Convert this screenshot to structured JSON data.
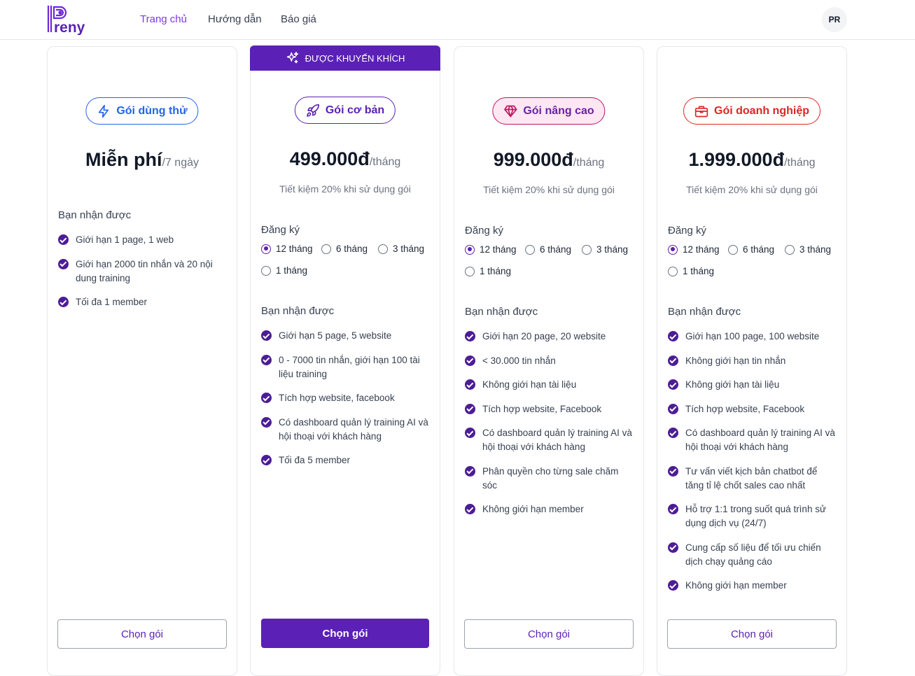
{
  "brand": {
    "name": "Preny",
    "accent": "#5b21b6"
  },
  "nav": {
    "home": "Trang chủ",
    "guide": "Hướng dẫn",
    "pricing": "Báo giá"
  },
  "user": {
    "initials": "PR"
  },
  "plans": [
    {
      "name": "Gói dùng thử",
      "icon": "lightning-icon",
      "price": "Miễn phí",
      "period": "/7 ngày",
      "receive_label": "Bạn nhận được",
      "features": [
        "Giới hạn 1 page, 1 web",
        "Giới hạn 2000 tin nhắn và 20 nội dung training",
        "Tối đa 1 member"
      ],
      "button": "Chọn gói"
    },
    {
      "name": "Gói cơ bản",
      "icon": "rocket-icon",
      "recommended_label": "ĐƯỢC KHUYẾN KHÍCH",
      "price": "499.000đ",
      "period": "/tháng",
      "saving": "Tiết kiệm 20% khi sử dụng gói",
      "register_label": "Đăng ký",
      "durations": [
        "12 tháng",
        "6 tháng",
        "3 tháng",
        "1 tháng"
      ],
      "selected": "12 tháng",
      "receive_label": "Bạn nhận được",
      "features": [
        "Giới hạn 5 page, 5 website",
        "0 - 7000 tin nhắn, giới hạn 100 tài liệu training",
        "Tích hợp website, facebook",
        "Có dashboard quản lý training AI và hội thoại với khách hàng",
        "Tối đa 5 member"
      ],
      "button": "Chọn gói"
    },
    {
      "name": "Gói nâng cao",
      "icon": "diamond-icon",
      "price": "999.000đ",
      "period": "/tháng",
      "saving": "Tiết kiệm 20% khi sử dụng gói",
      "register_label": "Đăng ký",
      "durations": [
        "12 tháng",
        "6 tháng",
        "3 tháng",
        "1 tháng"
      ],
      "selected": "12 tháng",
      "receive_label": "Bạn nhận được",
      "features": [
        "Giới hạn 20 page, 20 website",
        "< 30.000 tin nhắn",
        "Không giới hạn tài liệu",
        "Tích hợp website, Facebook",
        "Có dashboard quản lý training AI và hội thoại với khách hàng",
        "Phân quyền cho từng sale chăm sóc",
        "Không giới hạn member"
      ],
      "button": "Chọn gói"
    },
    {
      "name": "Gói doanh nghiệp",
      "icon": "briefcase-icon",
      "price": "1.999.000đ",
      "period": "/tháng",
      "saving": "Tiết kiệm 20% khi sử dụng gói",
      "register_label": "Đăng ký",
      "durations": [
        "12 tháng",
        "6 tháng",
        "3 tháng",
        "1 tháng"
      ],
      "selected": "12 tháng",
      "receive_label": "Bạn nhận được",
      "features": [
        "Giới hạn 100 page, 100 website",
        "Không giới hạn tin nhắn",
        "Không giới hạn tài liệu",
        "Tích hợp website, Facebook",
        "Có dashboard quản lý training AI và hội thoại với khách hàng",
        "Tư vấn viết kịch bản chatbot để tăng tỉ lệ chốt sales cao nhất",
        "Hỗ trợ 1:1 trong suốt quá trình sử dụng dịch vụ (24/7)",
        "Cung cấp số liệu để tối ưu chiến dịch chạy quảng cáo",
        "Không giới hạn member"
      ],
      "button": "Chọn gói"
    }
  ]
}
